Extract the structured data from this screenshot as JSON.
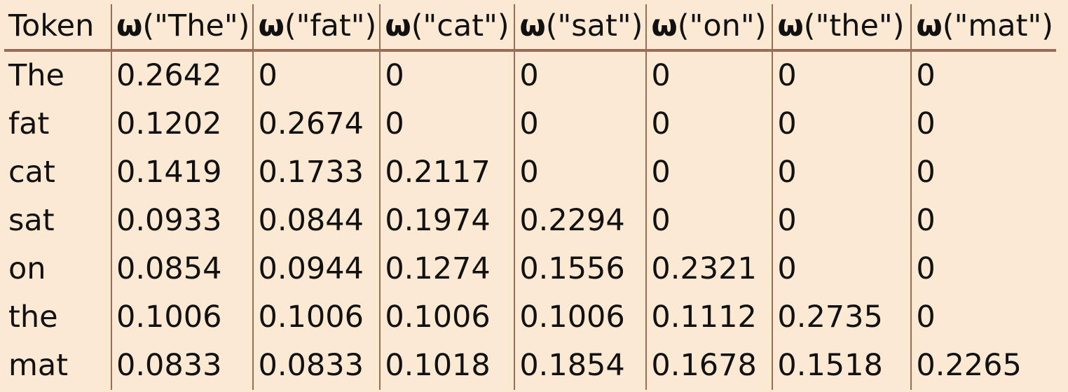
{
  "table": {
    "header": {
      "token_label": "Token",
      "columns": [
        {
          "symbol": "ω",
          "arg": "(\"The\")"
        },
        {
          "symbol": "ω",
          "arg": "(\"fat\")"
        },
        {
          "symbol": "ω",
          "arg": "(\"cat\")"
        },
        {
          "symbol": "ω",
          "arg": "(\"sat\")"
        },
        {
          "symbol": "ω",
          "arg": "(\"on\")"
        },
        {
          "symbol": "ω",
          "arg": "(\"the\")"
        },
        {
          "symbol": "ω",
          "arg": "(\"mat\")"
        }
      ]
    },
    "rows": [
      {
        "token": "The",
        "cells": [
          "0.2642",
          "0",
          "0",
          "0",
          "0",
          "0",
          "0"
        ]
      },
      {
        "token": "fat",
        "cells": [
          "0.1202",
          "0.2674",
          "0",
          "0",
          "0",
          "0",
          "0"
        ]
      },
      {
        "token": "cat",
        "cells": [
          "0.1419",
          "0.1733",
          "0.2117",
          "0",
          "0",
          "0",
          "0"
        ]
      },
      {
        "token": "sat",
        "cells": [
          "0.0933",
          "0.0844",
          "0.1974",
          "0.2294",
          "0",
          "0",
          "0"
        ]
      },
      {
        "token": "on",
        "cells": [
          "0.0854",
          "0.0944",
          "0.1274",
          "0.1556",
          "0.2321",
          "0",
          "0"
        ]
      },
      {
        "token": "the",
        "cells": [
          "0.1006",
          "0.1006",
          "0.1006",
          "0.1006",
          "0.1112",
          "0.2735",
          "0"
        ]
      },
      {
        "token": "mat",
        "cells": [
          "0.0833",
          "0.0833",
          "0.1018",
          "0.1854",
          "0.1678",
          "0.1518",
          "0.2265"
        ]
      }
    ]
  }
}
